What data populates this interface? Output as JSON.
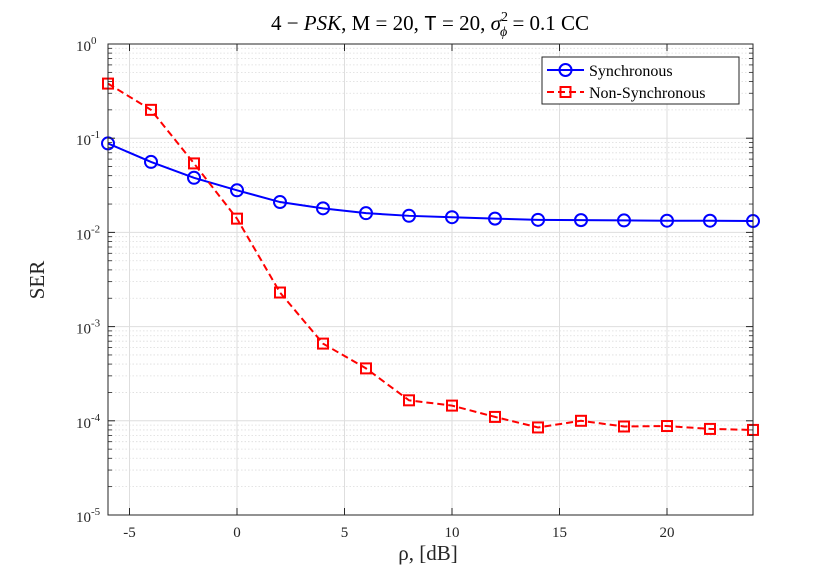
{
  "chart_data": {
    "type": "line",
    "title": "4 − PSK, M = 20, T = 20, σ²ϕ = 0.1 CC",
    "title_parts": {
      "prefix": "4 − ",
      "psk": "PSK",
      "m_part": ", M = 20, ",
      "t_symbol": "T",
      "t_part": " = 20, ",
      "sigma": "σ",
      "sigma_sup": "2",
      "sigma_sub": "ϕ",
      "suffix": " = 0.1 CC"
    },
    "xlabel": "ρ, [dB]",
    "ylabel": "SER",
    "x_scale": "linear",
    "y_scale": "log",
    "xlim": [
      -6,
      24
    ],
    "ylim": [
      1e-05,
      1
    ],
    "x_ticks": [
      -5,
      0,
      5,
      10,
      15,
      20
    ],
    "x_tick_labels": [
      "-5",
      "0",
      "5",
      "10",
      "15",
      "20"
    ],
    "y_ticks": [
      1e-05,
      0.0001,
      0.001,
      0.01,
      0.1,
      1
    ],
    "y_tick_labels": [
      {
        "base": "10",
        "exp": "-5"
      },
      {
        "base": "10",
        "exp": "-4"
      },
      {
        "base": "10",
        "exp": "-3"
      },
      {
        "base": "10",
        "exp": "-2"
      },
      {
        "base": "10",
        "exp": "-1"
      },
      {
        "base": "10",
        "exp": "0"
      }
    ],
    "grid": true,
    "legend_position": "top-right",
    "x": [
      -6,
      -4,
      -2,
      0,
      2,
      4,
      6,
      8,
      10,
      12,
      14,
      16,
      18,
      20,
      22,
      24
    ],
    "series": [
      {
        "name": "Synchronous",
        "color": "#0000ff",
        "line_style": "solid",
        "marker": "circle",
        "values": [
          0.088,
          0.056,
          0.038,
          0.028,
          0.021,
          0.018,
          0.016,
          0.015,
          0.0145,
          0.014,
          0.0136,
          0.0135,
          0.0134,
          0.0133,
          0.0133,
          0.0132
        ]
      },
      {
        "name": "Non-Synchronous",
        "color": "#ff0000",
        "line_style": "dashed",
        "marker": "square",
        "values": [
          0.38,
          0.2,
          0.054,
          0.014,
          0.0023,
          0.00066,
          0.00036,
          0.000165,
          0.000145,
          0.00011,
          8.5e-05,
          0.0001,
          8.7e-05,
          8.8e-05,
          8.2e-05,
          8e-05
        ]
      }
    ]
  }
}
